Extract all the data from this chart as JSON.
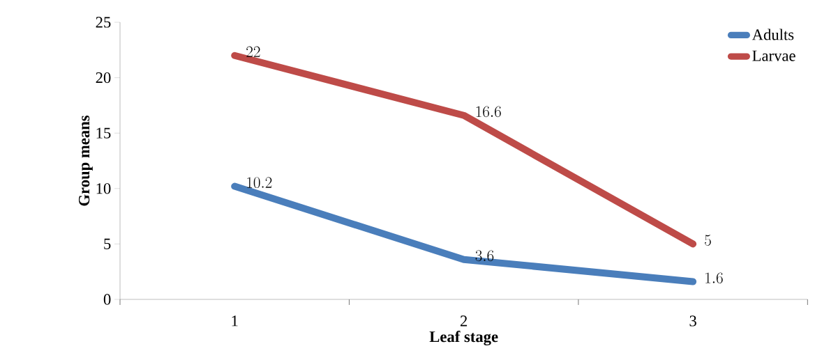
{
  "chart_data": {
    "type": "line",
    "xlabel": "Leaf stage",
    "ylabel": "Group means",
    "categories": [
      "1",
      "2",
      "3"
    ],
    "series": [
      {
        "name": "Adults",
        "color": "#4a7ebb",
        "values": [
          10.2,
          3.6,
          1.6
        ]
      },
      {
        "name": "Larvae",
        "color": "#be4b48",
        "values": [
          22,
          16.6,
          5
        ]
      }
    ],
    "ylim": [
      0,
      25
    ],
    "yticks": [
      0,
      5,
      10,
      15,
      20,
      25
    ],
    "grid": false,
    "legend": "top right",
    "marker": "none",
    "line_style": "solid",
    "data_labels": true
  }
}
